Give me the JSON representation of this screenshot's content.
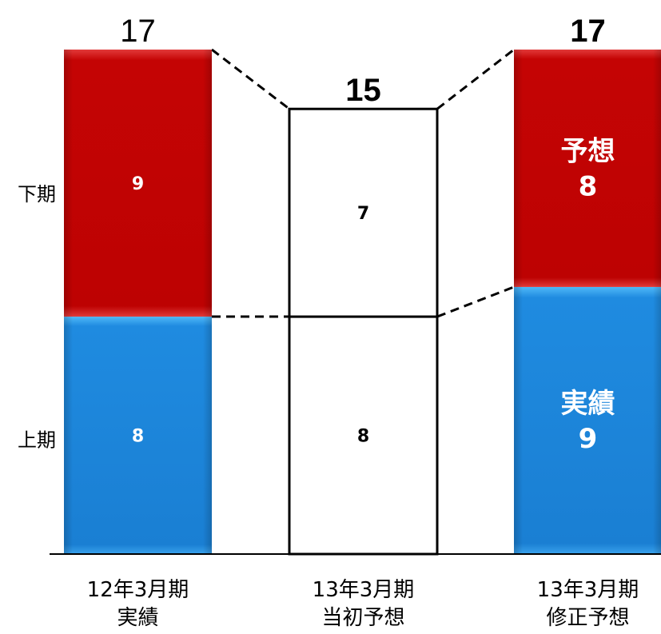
{
  "chart_data": {
    "type": "bar",
    "stacked": true,
    "categories": [
      [
        "12年3月期",
        "実績"
      ],
      [
        "13年3月期",
        "当初予想"
      ],
      [
        "13年3月期",
        "修正予想"
      ]
    ],
    "series": [
      {
        "name": "上期",
        "values": [
          8,
          8,
          9
        ],
        "colors": [
          "#1a82d8",
          "outline",
          "#1a82d8"
        ]
      },
      {
        "name": "下期",
        "values": [
          9,
          7,
          8
        ],
        "colors": [
          "#c10202",
          "outline",
          "#c10202"
        ]
      }
    ],
    "totals": [
      "17",
      "15",
      "17"
    ],
    "segment_labels": [
      {
        "lower": [
          "8"
        ],
        "upper": [
          "9"
        ]
      },
      {
        "lower": [
          "8"
        ],
        "upper": [
          "7"
        ]
      },
      {
        "lower": [
          "実績",
          "9"
        ],
        "upper": [
          "予想",
          "8"
        ]
      }
    ],
    "row_labels": {
      "upper": "下期",
      "lower": "上期"
    },
    "ylim": [
      0,
      17
    ],
    "grid": false,
    "colors": {
      "blue": "#1a82d8",
      "blue_light": "#4fb3f5",
      "red": "#c10202",
      "red_light": "#e03030",
      "outline": "#000000"
    }
  }
}
